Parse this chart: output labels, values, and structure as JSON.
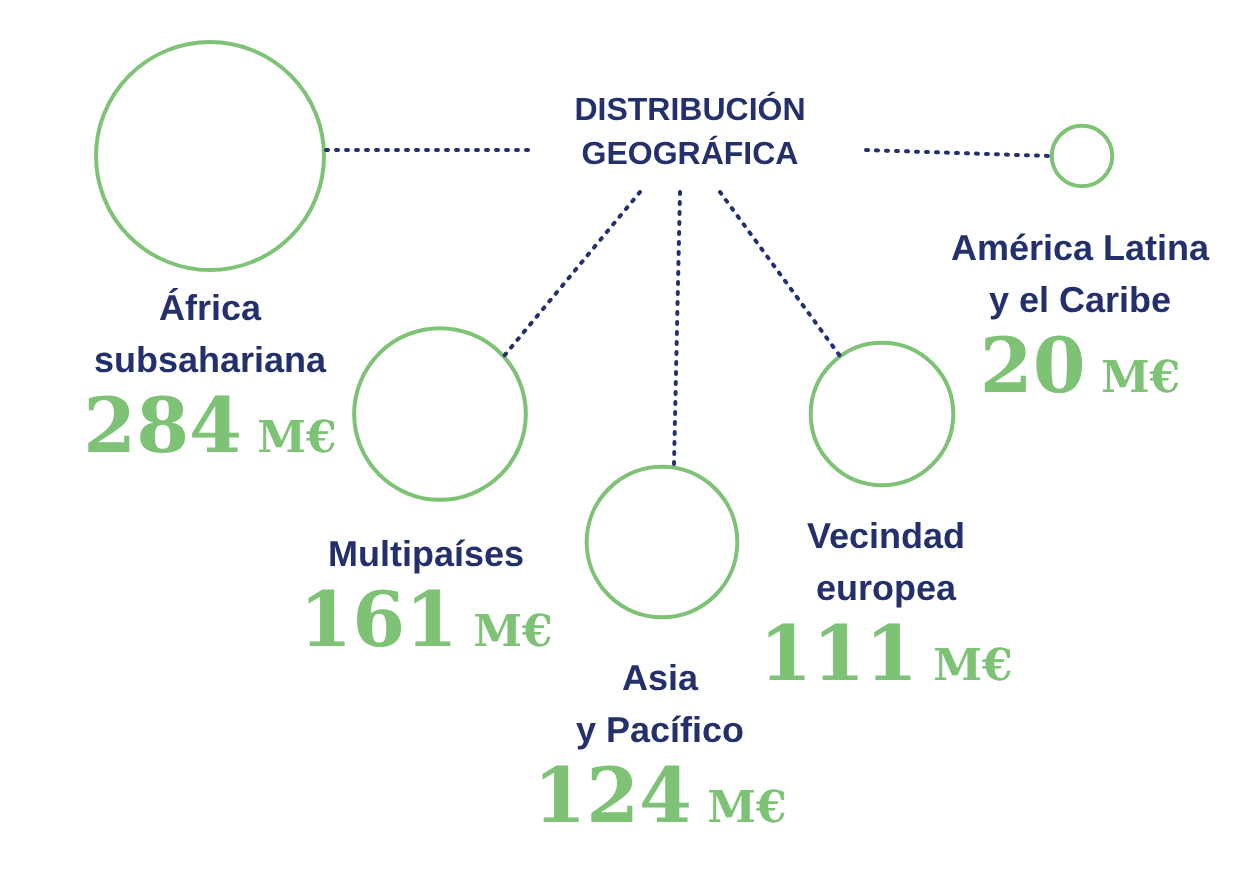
{
  "chart_data": {
    "type": "other",
    "title": "DISTRIBUCIÓN GEOGRÁFICA",
    "categories": [
      "África subsahariana",
      "Multipaíses",
      "Asia y Pacífico",
      "Vecindad europea",
      "América Latina y el Caribe"
    ],
    "values": [
      284,
      161,
      124,
      111,
      20
    ],
    "value_labels": [
      "284 M€",
      "161 M€",
      "124 M€",
      "111 M€",
      "20 M€"
    ],
    "color": "#7dc275"
  }
}
